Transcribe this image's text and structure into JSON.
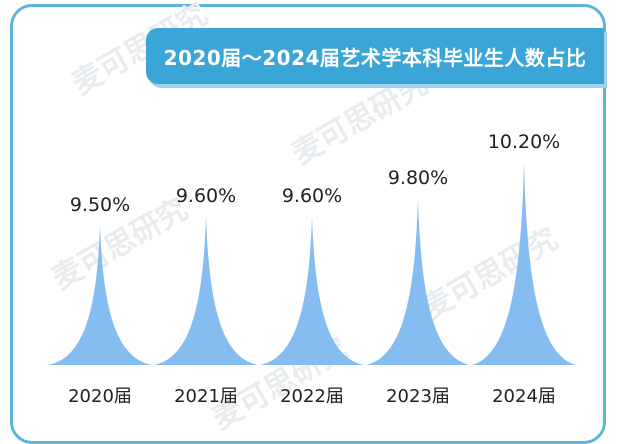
{
  "title": "2020届～2024届艺术学本科毕业生人数占比",
  "watermark": "麦可思研究",
  "colors": {
    "accent": "#3aa6d8",
    "peak": "#86bdf1",
    "frame": "#5fb4dc"
  },
  "chart_data": {
    "type": "bar",
    "title": "2020届～2024届艺术学本科毕业生人数占比",
    "categories": [
      "2020届",
      "2021届",
      "2022届",
      "2023届",
      "2024届"
    ],
    "values": [
      9.5,
      9.6,
      9.6,
      9.8,
      10.2
    ],
    "data_labels": [
      "9.50%",
      "9.60%",
      "9.60%",
      "9.80%",
      "10.20%"
    ],
    "unit": "%",
    "xlabel": "",
    "ylabel": "",
    "grid": false,
    "legend": "none"
  }
}
